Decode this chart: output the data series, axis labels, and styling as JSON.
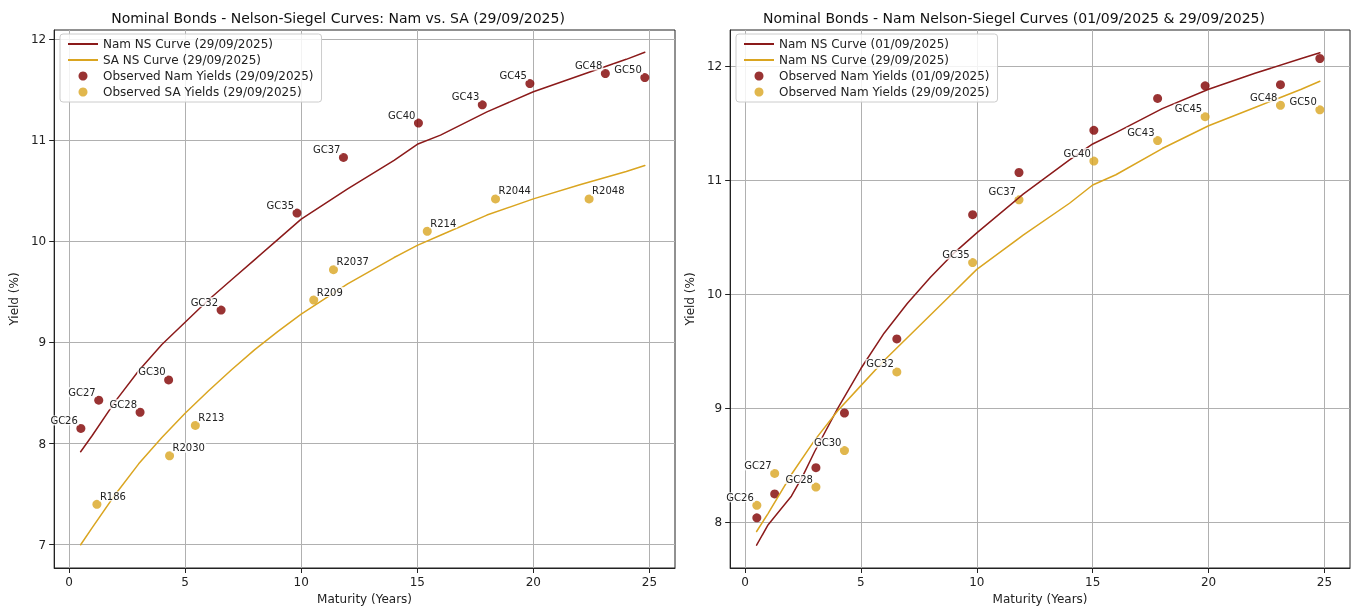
{
  "chart_data": [
    {
      "type": "line",
      "title": "Nominal Bonds - Nelson-Siegel Curves: Nam vs. SA (29/09/2025)",
      "xlabel": "Maturity (Years)",
      "ylabel": "Yield (%)",
      "xlim": [
        -0.64,
        26.1
      ],
      "xticks": [
        0,
        5,
        10,
        15,
        20,
        25
      ],
      "ylim": [
        6.77,
        12.09
      ],
      "yticks": [
        7,
        8,
        9,
        10,
        11,
        12
      ],
      "grid": true,
      "legend": "top left",
      "series": [
        {
          "name": "Nam NS Curve (29/09/2025)",
          "color": "#8b1a1a",
          "marker": "none",
          "line_style": "solid",
          "x": [
            0.5,
            1,
            2,
            3,
            4,
            5,
            6,
            7,
            8,
            9,
            10,
            12,
            14,
            15,
            16,
            18,
            20,
            22,
            24,
            24.8
          ],
          "values": [
            7.92,
            8.08,
            8.42,
            8.72,
            8.98,
            9.2,
            9.42,
            9.62,
            9.82,
            10.02,
            10.22,
            10.52,
            10.8,
            10.96,
            11.05,
            11.28,
            11.48,
            11.64,
            11.8,
            11.87
          ]
        },
        {
          "name": "SA NS Curve (29/09/2025)",
          "color": "#daa520",
          "marker": "none",
          "line_style": "solid",
          "x": [
            0.5,
            1,
            2,
            3,
            4,
            5,
            6,
            7,
            8,
            9,
            10,
            12,
            14,
            15,
            16,
            18,
            20,
            22,
            24,
            24.8
          ],
          "values": [
            7.0,
            7.17,
            7.5,
            7.8,
            8.06,
            8.3,
            8.52,
            8.73,
            8.93,
            9.11,
            9.28,
            9.58,
            9.84,
            9.96,
            10.06,
            10.26,
            10.42,
            10.56,
            10.69,
            10.75
          ]
        },
        {
          "name": "Observed Nam Yields (29/09/2025)",
          "type": "scatter",
          "color": "#800000",
          "marker": "circle",
          "x": [
            0.51,
            1.28,
            3.06,
            4.29,
            6.55,
            9.82,
            11.82,
            15.05,
            17.8,
            19.85,
            23.1,
            24.8
          ],
          "values": [
            8.15,
            8.43,
            8.31,
            8.63,
            9.32,
            10.28,
            10.83,
            11.17,
            11.35,
            11.56,
            11.66,
            11.62
          ]
        },
        {
          "name": "Observed SA Yields (29/09/2025)",
          "type": "scatter",
          "color": "#daa520",
          "marker": "circle",
          "x": [
            1.2,
            4.33,
            5.44,
            10.54,
            11.39,
            15.43,
            18.37,
            22.4
          ],
          "values": [
            7.4,
            7.88,
            8.18,
            9.42,
            9.72,
            10.1,
            10.42,
            10.42
          ]
        }
      ],
      "annotations": [
        {
          "text": "GC26",
          "x": 0.51,
          "y": 8.15
        },
        {
          "text": "GC27",
          "x": 1.28,
          "y": 8.43
        },
        {
          "text": "GC28",
          "x": 3.06,
          "y": 8.31
        },
        {
          "text": "GC30",
          "x": 4.29,
          "y": 8.63
        },
        {
          "text": "GC32",
          "x": 6.55,
          "y": 9.32
        },
        {
          "text": "GC35",
          "x": 9.82,
          "y": 10.28
        },
        {
          "text": "GC37",
          "x": 11.82,
          "y": 10.83
        },
        {
          "text": "GC40",
          "x": 15.05,
          "y": 11.17
        },
        {
          "text": "GC43",
          "x": 17.8,
          "y": 11.35
        },
        {
          "text": "GC45",
          "x": 19.85,
          "y": 11.56
        },
        {
          "text": "GC48",
          "x": 23.1,
          "y": 11.66
        },
        {
          "text": "GC50",
          "x": 24.8,
          "y": 11.62
        },
        {
          "text": "R186",
          "x": 1.2,
          "y": 7.4
        },
        {
          "text": "R2030",
          "x": 4.33,
          "y": 7.88
        },
        {
          "text": "R213",
          "x": 5.44,
          "y": 8.18
        },
        {
          "text": "R209",
          "x": 10.54,
          "y": 9.42
        },
        {
          "text": "R2037",
          "x": 11.39,
          "y": 9.72
        },
        {
          "text": "R214",
          "x": 15.43,
          "y": 10.1
        },
        {
          "text": "R2044",
          "x": 18.37,
          "y": 10.42
        },
        {
          "text": "R2048",
          "x": 22.4,
          "y": 10.42
        }
      ]
    },
    {
      "type": "line",
      "title": "Nominal Bonds - Nam Nelson-Siegel Curves (01/09/2025 & 29/09/2025)",
      "xlabel": "Maturity (Years)",
      "ylabel": "Yield (%)",
      "xlim": [
        -0.64,
        26.1
      ],
      "xticks": [
        0,
        5,
        10,
        15,
        20,
        25
      ],
      "ylim": [
        7.6,
        12.32
      ],
      "yticks": [
        8,
        9,
        10,
        11,
        12
      ],
      "grid": true,
      "legend": "top left",
      "series": [
        {
          "name": "Nam NS Curve (01/09/2025)",
          "color": "#8b1a1a",
          "marker": "none",
          "line_style": "solid",
          "x": [
            0.5,
            1,
            2,
            2.5,
            3,
            4,
            5,
            6,
            7,
            8,
            9,
            10,
            12,
            14,
            15,
            16,
            18,
            20,
            22,
            24,
            24.8
          ],
          "values": [
            7.8,
            7.98,
            8.23,
            8.41,
            8.62,
            9.0,
            9.35,
            9.66,
            9.92,
            10.15,
            10.36,
            10.54,
            10.88,
            11.18,
            11.32,
            11.42,
            11.63,
            11.8,
            11.94,
            12.07,
            12.12
          ]
        },
        {
          "name": "Nam NS Curve (29/09/2025)",
          "color": "#daa520",
          "marker": "none",
          "line_style": "solid",
          "x": [
            0.5,
            1,
            2,
            3,
            4,
            5,
            6,
            7,
            8,
            9,
            10,
            12,
            14,
            15,
            16,
            18,
            20,
            22,
            24,
            24.8
          ],
          "values": [
            7.92,
            8.08,
            8.42,
            8.72,
            8.98,
            9.2,
            9.42,
            9.62,
            9.82,
            10.02,
            10.22,
            10.52,
            10.8,
            10.96,
            11.05,
            11.28,
            11.48,
            11.64,
            11.8,
            11.87
          ]
        },
        {
          "name": "Observed Nam Yields (01/09/2025)",
          "type": "scatter",
          "color": "#800000",
          "marker": "circle",
          "x": [
            0.51,
            1.28,
            3.06,
            4.29,
            6.55,
            9.82,
            11.82,
            15.05,
            17.8,
            19.85,
            23.1,
            24.8
          ],
          "values": [
            8.04,
            8.25,
            8.48,
            8.96,
            9.61,
            10.7,
            11.07,
            11.44,
            11.72,
            11.83,
            11.84,
            12.07
          ]
        },
        {
          "name": "Observed Nam Yields (29/09/2025)",
          "type": "scatter",
          "color": "#daa520",
          "marker": "circle",
          "x": [
            0.51,
            1.28,
            3.06,
            4.29,
            6.55,
            9.82,
            11.82,
            15.05,
            17.8,
            19.85,
            23.1,
            24.8
          ],
          "values": [
            8.15,
            8.43,
            8.31,
            8.63,
            9.32,
            10.28,
            10.83,
            11.17,
            11.35,
            11.56,
            11.66,
            11.62
          ]
        }
      ],
      "annotations": [
        {
          "text": "GC26",
          "x": 0.51,
          "y": 8.15
        },
        {
          "text": "GC27",
          "x": 1.28,
          "y": 8.43
        },
        {
          "text": "GC28",
          "x": 3.06,
          "y": 8.31
        },
        {
          "text": "GC30",
          "x": 4.29,
          "y": 8.63
        },
        {
          "text": "GC32",
          "x": 6.55,
          "y": 9.32
        },
        {
          "text": "GC35",
          "x": 9.82,
          "y": 10.28
        },
        {
          "text": "GC37",
          "x": 11.82,
          "y": 10.83
        },
        {
          "text": "GC40",
          "x": 15.05,
          "y": 11.17
        },
        {
          "text": "GC43",
          "x": 17.8,
          "y": 11.35
        },
        {
          "text": "GC45",
          "x": 19.85,
          "y": 11.56
        },
        {
          "text": "GC48",
          "x": 23.1,
          "y": 11.66
        },
        {
          "text": "GC50",
          "x": 24.8,
          "y": 11.62
        }
      ]
    }
  ]
}
